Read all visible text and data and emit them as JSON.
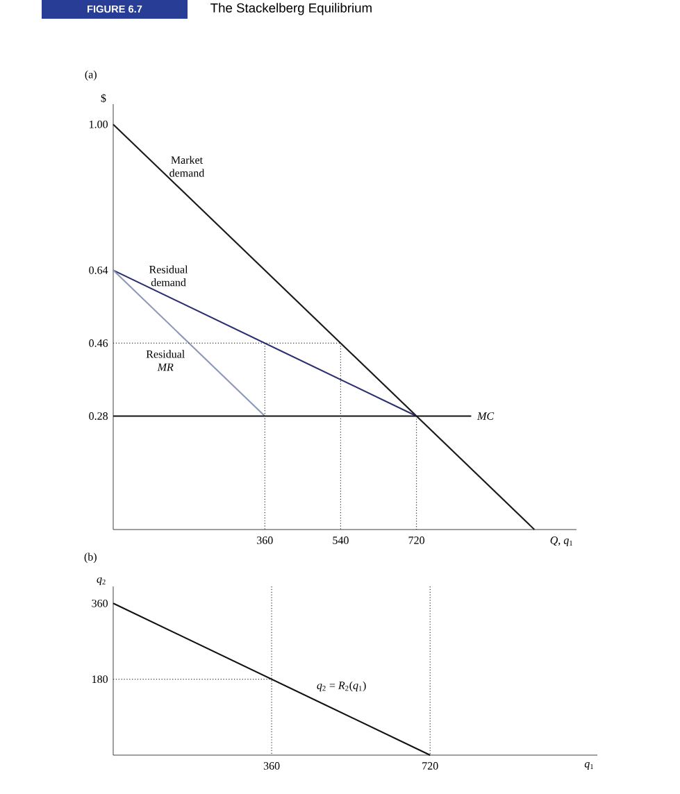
{
  "chart_data": [
    {
      "type": "line",
      "title": "The Stackelberg Equilibrium",
      "subtitle": "FIGURE 6.7",
      "annotations": [
        "(a)"
      ],
      "xlabel": "*Q*, *q*$_{1}$",
      "ylabel": "$",
      "xlim": [
        0,
        1100
      ],
      "ylim": [
        0,
        1.05
      ],
      "xticks": [
        360,
        540,
        720
      ],
      "yticks": [
        0.28,
        0.46,
        0.64,
        {
          "value": 1,
          "label": "1.00"
        }
      ],
      "series": [
        {
          "name": "Market demand",
          "color": "#1a1a1a",
          "x": [
            0,
            1000
          ],
          "values": [
            1,
            0
          ]
        },
        {
          "name": "Residual demand",
          "color": "#2b2f6e",
          "x": [
            0,
            720
          ],
          "values": [
            0.64,
            0.28
          ]
        },
        {
          "name": "Residual *MR*",
          "color": "#8d97b8",
          "x": [
            0,
            360
          ],
          "values": [
            0.64,
            0.28
          ]
        },
        {
          "name": "*MC*",
          "color": "#111111",
          "x": [
            0,
            850
          ],
          "values": [
            0.28,
            0.28
          ]
        },
        {
          "color": "#333333",
          "line_style": "dotted",
          "x": [
            0,
            540
          ],
          "values": [
            0.46,
            0.46
          ]
        },
        {
          "color": "#333333",
          "line_style": "dotted",
          "x": [
            360,
            360
          ],
          "values": [
            0.46,
            0
          ]
        },
        {
          "color": "#333333",
          "line_style": "dotted",
          "x": [
            540,
            540
          ],
          "values": [
            0.46,
            0
          ]
        },
        {
          "color": "#333333",
          "line_style": "dotted",
          "x": [
            720,
            720
          ],
          "values": [
            0.28,
            0
          ]
        }
      ]
    },
    {
      "type": "line",
      "annotations": [
        "(b)"
      ],
      "xlabel": "*q*$_{1}$",
      "ylabel": "*q*$_{2}$",
      "xlim": [
        0,
        1100
      ],
      "ylim": [
        0,
        400
      ],
      "xticks": [
        360,
        720
      ],
      "yticks": [
        180,
        360
      ],
      "series": [
        {
          "name": "*q*$_{2}$ = *R*$_{2}$(*q*$_{1}$)",
          "color": "#111111",
          "x": [
            0,
            720
          ],
          "values": [
            360,
            0
          ]
        },
        {
          "color": "#333333",
          "line_style": "dotted",
          "x": [
            0,
            360
          ],
          "values": [
            180,
            180
          ]
        },
        {
          "color": "#333333",
          "line_style": "dotted",
          "x": [
            360,
            360
          ],
          "values": [
            400,
            0
          ]
        },
        {
          "color": "#333333",
          "line_style": "dotted",
          "x": [
            720,
            720
          ],
          "values": [
            400,
            0
          ]
        }
      ]
    }
  ]
}
